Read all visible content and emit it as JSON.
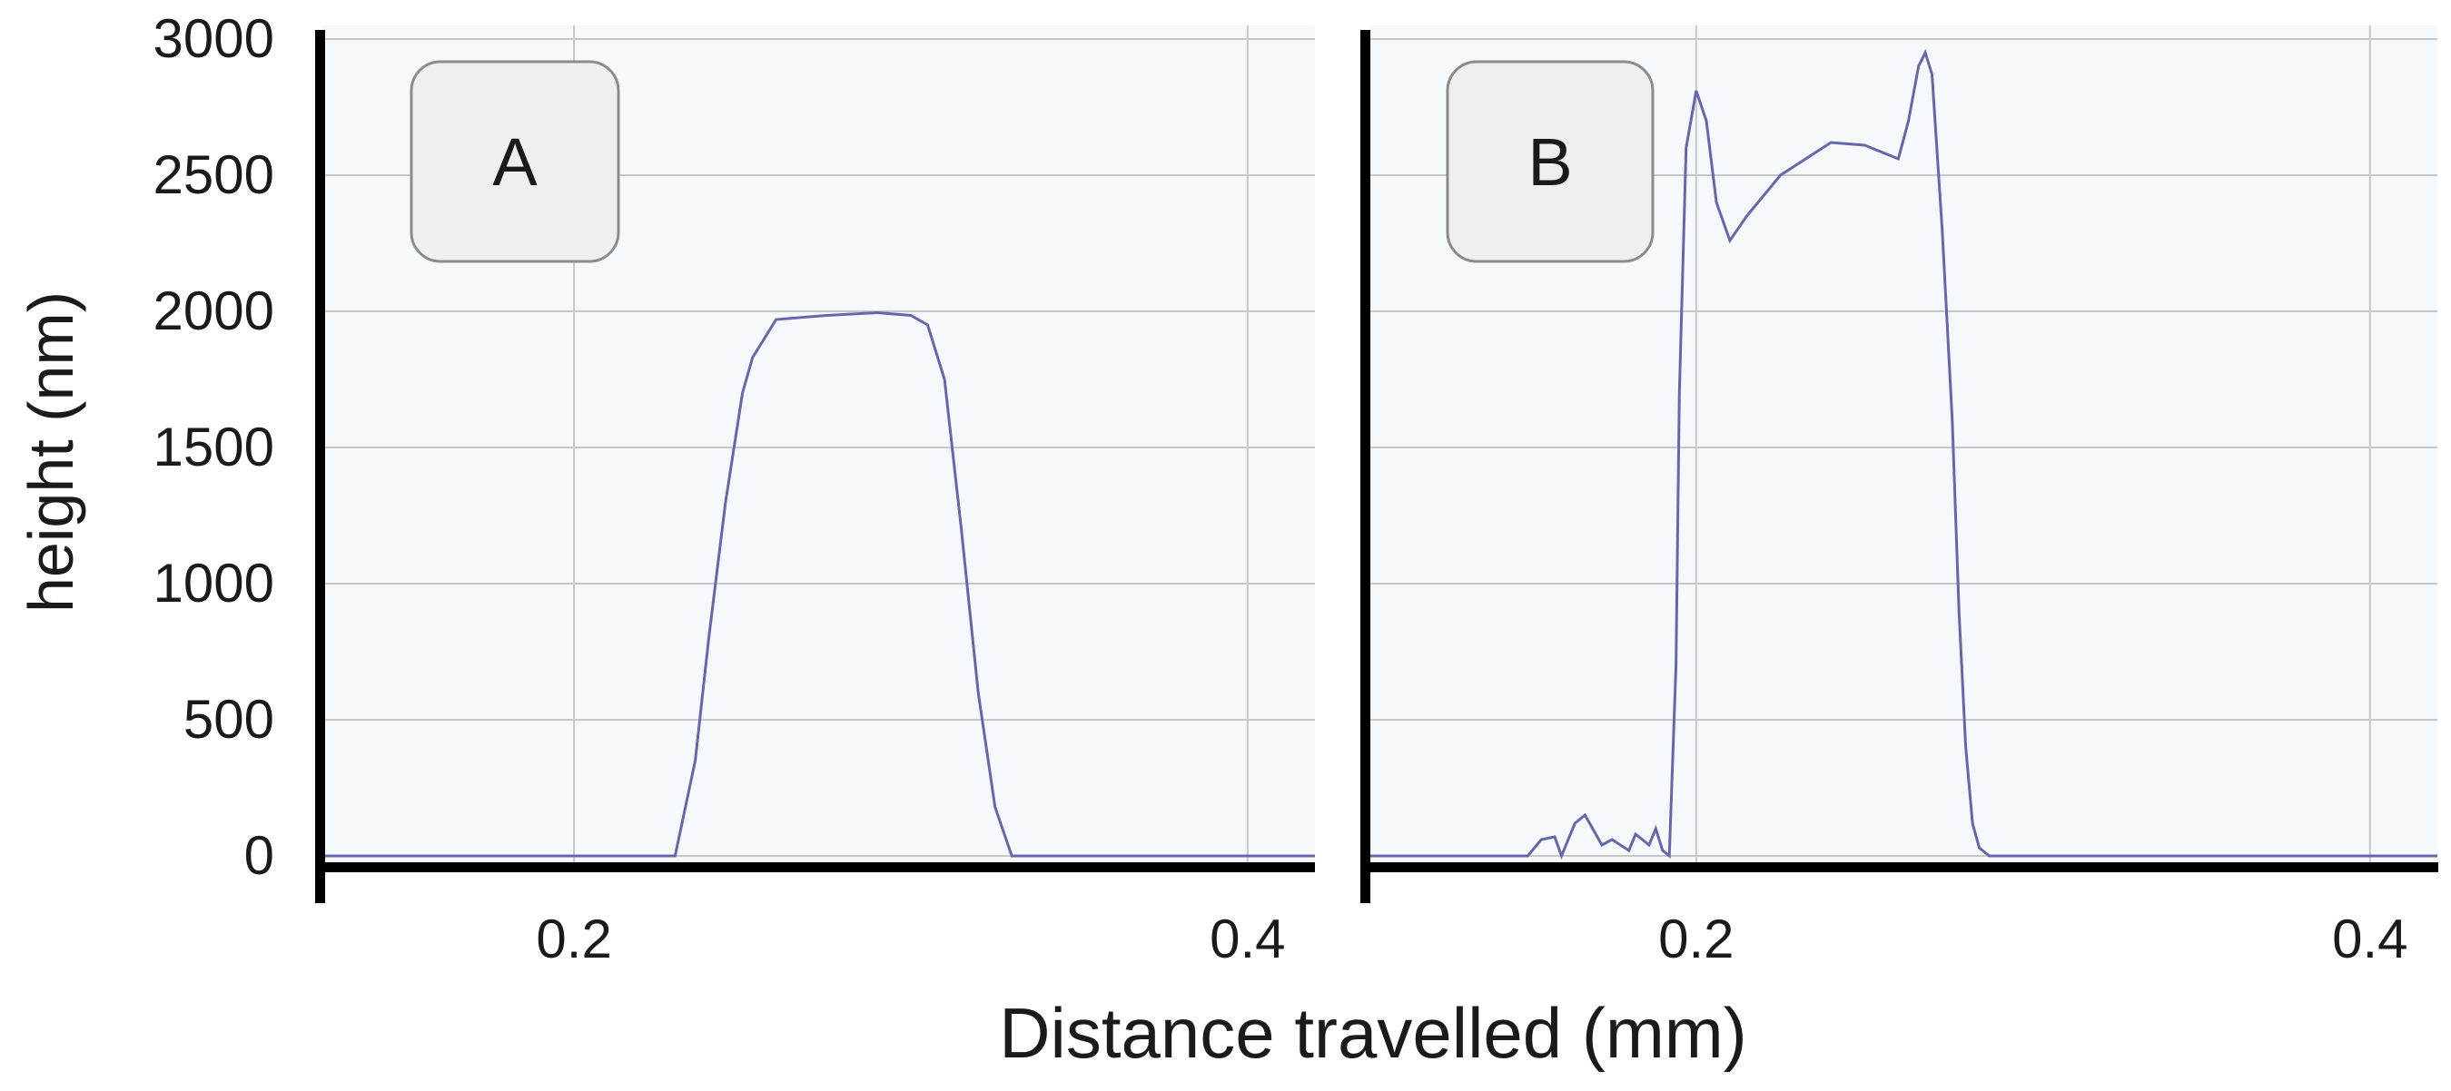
{
  "figure": {
    "ylabel": "height (nm)",
    "xlabel": "Distance travelled (mm)"
  },
  "chart_data": [
    {
      "type": "line",
      "panel_label": "A",
      "xlim": [
        0.125,
        0.42
      ],
      "ylim": [
        -30,
        3050
      ],
      "x_ticks": [
        0.2,
        0.4
      ],
      "x_tick_labels": [
        "0.2",
        "0.4"
      ],
      "y_ticks": [
        0,
        500,
        1000,
        1500,
        2000,
        2500,
        3000
      ],
      "y_tick_labels": [
        "0",
        "500",
        "1000",
        "1500",
        "2000",
        "2500",
        "3000"
      ],
      "grid": true,
      "line_color": "#6666aa",
      "series": [
        {
          "x": [
            0.125,
            0.2,
            0.23,
            0.236,
            0.24,
            0.245,
            0.25,
            0.253,
            0.26,
            0.275,
            0.29,
            0.3,
            0.305,
            0.31,
            0.315,
            0.32,
            0.325,
            0.33,
            0.4,
            0.42
          ],
          "y": [
            0,
            0,
            0,
            350,
            800,
            1300,
            1700,
            1830,
            1970,
            1985,
            1995,
            1985,
            1950,
            1750,
            1200,
            600,
            180,
            0,
            0,
            0
          ]
        }
      ]
    },
    {
      "type": "line",
      "panel_label": "B",
      "xlim": [
        0.103,
        0.42
      ],
      "ylim": [
        -30,
        3050
      ],
      "x_ticks": [
        0.2,
        0.4
      ],
      "x_tick_labels": [
        "0.2",
        "0.4"
      ],
      "y_ticks": [
        0,
        500,
        1000,
        1500,
        2000,
        2500,
        3000
      ],
      "y_tick_labels": [
        "0",
        "500",
        "1000",
        "1500",
        "2000",
        "2500",
        "3000"
      ],
      "grid": true,
      "line_color": "#6666aa",
      "series": [
        {
          "x": [
            0.103,
            0.15,
            0.154,
            0.158,
            0.16,
            0.164,
            0.167,
            0.172,
            0.175,
            0.18,
            0.182,
            0.186,
            0.188,
            0.19,
            0.192,
            0.194,
            0.195,
            0.197,
            0.2,
            0.203,
            0.206,
            0.21,
            0.215,
            0.225,
            0.24,
            0.25,
            0.26,
            0.263,
            0.266,
            0.268,
            0.27,
            0.273,
            0.276,
            0.278,
            0.28,
            0.282,
            0.284,
            0.287,
            0.29,
            0.42
          ],
          "y": [
            0,
            0,
            60,
            70,
            0,
            120,
            150,
            40,
            60,
            20,
            80,
            40,
            100,
            20,
            0,
            700,
            1700,
            2600,
            2810,
            2700,
            2400,
            2260,
            2350,
            2500,
            2620,
            2610,
            2560,
            2700,
            2900,
            2950,
            2870,
            2300,
            1600,
            900,
            400,
            120,
            30,
            0,
            0,
            0
          ]
        }
      ]
    }
  ]
}
